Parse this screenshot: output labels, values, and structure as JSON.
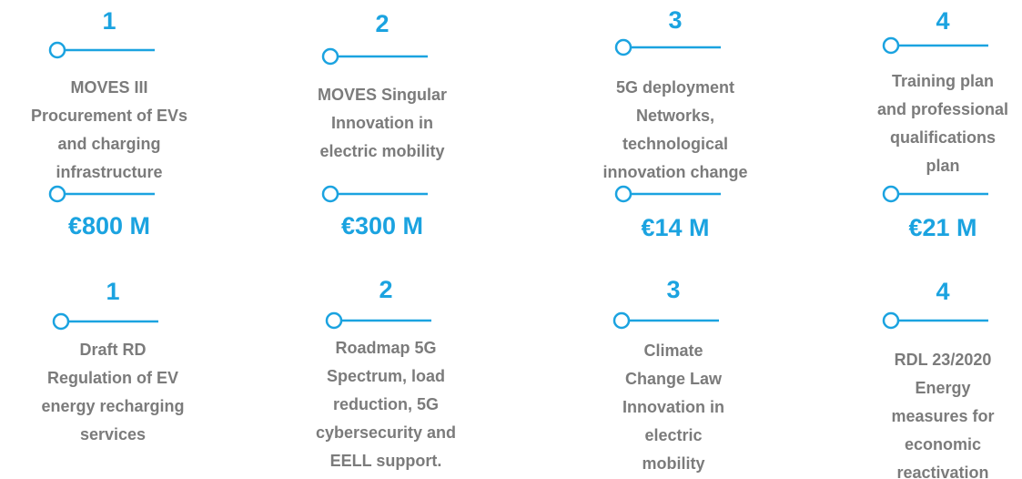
{
  "investments": [
    {
      "number": 1,
      "lines": [
        "MOVES III",
        "Procurement of EVs",
        "and charging",
        "infrastructure"
      ],
      "amount": "€800 M"
    },
    {
      "number": 2,
      "lines": [
        "MOVES Singular",
        "Innovation in",
        "electric mobility"
      ],
      "amount": "€300 M"
    },
    {
      "number": 3,
      "lines": [
        "5G deployment",
        "Networks,",
        "technological",
        "innovation change"
      ],
      "amount": "€14 M"
    },
    {
      "number": 4,
      "lines": [
        "Training plan",
        "and professional",
        "qualifications",
        "plan"
      ],
      "amount": "€21 M"
    }
  ],
  "reforms": [
    {
      "number": 1,
      "lines": [
        "Draft RD",
        "Regulation of EV",
        "energy recharging",
        "services"
      ]
    },
    {
      "number": 2,
      "lines": [
        "Roadmap 5G",
        "Spectrum, load",
        "reduction, 5G",
        "cybersecurity and",
        "EELL support."
      ]
    },
    {
      "number": 3,
      "lines": [
        "Climate",
        "Change Law",
        "Innovation in",
        "electric",
        "mobility"
      ]
    },
    {
      "number": 4,
      "lines": [
        "RDL 23/2020",
        "Energy",
        "measures for",
        "economic",
        "reactivation"
      ]
    }
  ]
}
